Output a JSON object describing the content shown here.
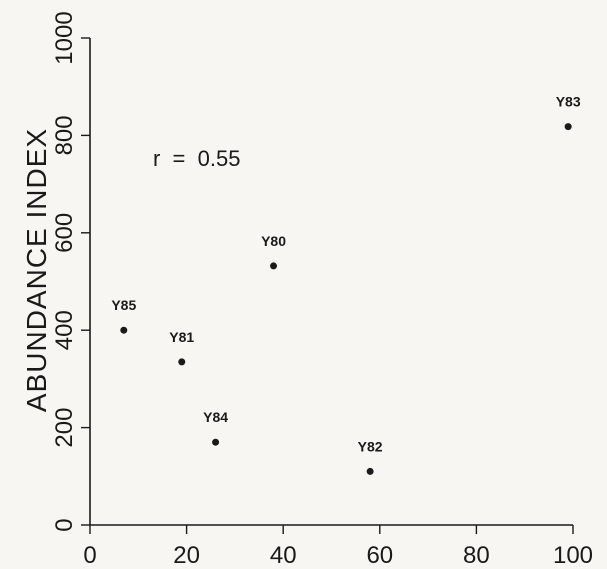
{
  "chart_data": {
    "type": "scatter",
    "title": "",
    "xlabel": "",
    "ylabel": "ABUNDANCE INDEX",
    "annotation": "r  =  0.55",
    "xlim": [
      0,
      100
    ],
    "ylim": [
      0,
      1000
    ],
    "xticks": [
      0,
      20,
      40,
      60,
      80,
      100
    ],
    "yticks": [
      0,
      200,
      400,
      600,
      800,
      1000
    ],
    "xtick_labels": [
      "0",
      "20",
      "40",
      "60",
      "80",
      "100"
    ],
    "ytick_labels": [
      "0",
      "200",
      "400",
      "600",
      "800",
      "1000"
    ],
    "grid": false,
    "points": [
      {
        "label": "Y85",
        "x": 7,
        "y": 400
      },
      {
        "label": "Y81",
        "x": 19,
        "y": 335
      },
      {
        "label": "Y84",
        "x": 26,
        "y": 170
      },
      {
        "label": "Y80",
        "x": 38,
        "y": 532
      },
      {
        "label": "Y82",
        "x": 58,
        "y": 110
      },
      {
        "label": "Y83",
        "x": 99,
        "y": 818
      }
    ]
  }
}
